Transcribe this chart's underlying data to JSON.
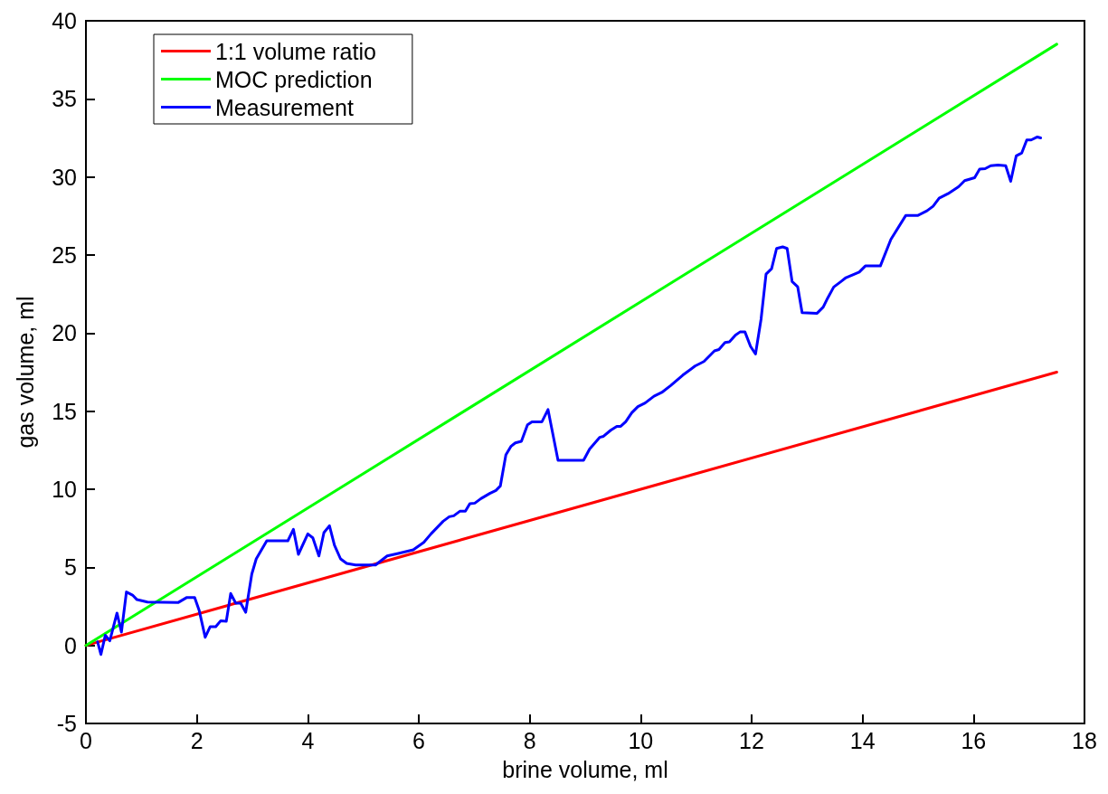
{
  "chart_data": {
    "type": "line",
    "xlabel": "brine volume, ml",
    "ylabel": "gas volume, ml",
    "xlim": [
      0,
      18
    ],
    "xticks": [
      0,
      2,
      4,
      6,
      8,
      10,
      12,
      14,
      16,
      18
    ],
    "ylim": [
      -5,
      40
    ],
    "yticks": [
      -5,
      0,
      5,
      10,
      15,
      20,
      25,
      30,
      35,
      40
    ],
    "grid": false,
    "legend": "top left",
    "marker": "none",
    "line_style": "solid",
    "series": [
      {
        "name": "1:1 volume ratio",
        "color": "#ff0000",
        "x": [
          0,
          17.5
        ],
        "values": [
          0,
          17.5
        ]
      },
      {
        "name": "MOC prediction",
        "color": "#00ff00",
        "x": [
          0,
          17.5
        ],
        "values": [
          0,
          38.5
        ]
      },
      {
        "name": "Measurement",
        "color": "#0000ff",
        "x": [
          0.21,
          0.27,
          0.35,
          0.43,
          0.56,
          0.64,
          0.73,
          0.84,
          0.92,
          1.11,
          1.66,
          1.82,
          1.96,
          2.04,
          2.15,
          2.24,
          2.34,
          2.43,
          2.53,
          2.61,
          2.7,
          2.79,
          2.88,
          2.99,
          3.07,
          3.26,
          3.64,
          3.74,
          3.83,
          4.0,
          4.09,
          4.2,
          4.29,
          4.39,
          4.48,
          4.59,
          4.7,
          4.86,
          5.03,
          5.22,
          5.43,
          5.63,
          5.9,
          6.09,
          6.22,
          6.44,
          6.55,
          6.63,
          6.74,
          6.84,
          6.92,
          7.01,
          7.12,
          7.28,
          7.39,
          7.47,
          7.57,
          7.66,
          7.74,
          7.85,
          7.96,
          8.04,
          8.22,
          8.33,
          8.4,
          8.51,
          8.97,
          9.08,
          9.26,
          9.33,
          9.46,
          9.57,
          9.64,
          9.73,
          9.84,
          9.95,
          10.08,
          10.24,
          10.38,
          10.54,
          10.76,
          10.98,
          11.14,
          11.33,
          11.41,
          11.52,
          11.6,
          11.71,
          11.79,
          11.88,
          11.98,
          12.07,
          12.17,
          12.26,
          12.36,
          12.45,
          12.56,
          12.64,
          12.73,
          12.83,
          12.91,
          13.18,
          13.29,
          13.37,
          13.48,
          13.61,
          13.7,
          13.94,
          14.05,
          14.32,
          14.51,
          14.78,
          15.0,
          15.16,
          15.27,
          15.38,
          15.54,
          15.73,
          15.84,
          16.02,
          16.11,
          16.21,
          16.31,
          16.44,
          16.58,
          16.67,
          16.77,
          16.87,
          16.96,
          17.04,
          17.15,
          17.21
        ],
        "values": [
          0.23,
          -0.58,
          0.65,
          0.29,
          2.07,
          0.85,
          3.42,
          3.22,
          2.93,
          2.78,
          2.74,
          3.07,
          3.07,
          2.26,
          0.52,
          1.2,
          1.2,
          1.58,
          1.55,
          3.32,
          2.7,
          2.7,
          2.12,
          4.57,
          5.54,
          6.7,
          6.7,
          7.43,
          5.83,
          7.14,
          6.89,
          5.73,
          7.22,
          7.66,
          6.41,
          5.54,
          5.25,
          5.15,
          5.15,
          5.15,
          5.73,
          5.89,
          6.12,
          6.6,
          7.14,
          7.95,
          8.24,
          8.3,
          8.59,
          8.59,
          9.07,
          9.11,
          9.4,
          9.73,
          9.92,
          10.21,
          12.2,
          12.74,
          12.97,
          13.07,
          14.13,
          14.32,
          14.32,
          15.1,
          13.84,
          11.85,
          11.85,
          12.58,
          13.32,
          13.39,
          13.78,
          14.03,
          14.03,
          14.32,
          14.9,
          15.29,
          15.52,
          15.96,
          16.2,
          16.64,
          17.31,
          17.89,
          18.18,
          18.86,
          18.95,
          19.4,
          19.44,
          19.88,
          20.07,
          20.07,
          19.15,
          18.66,
          20.89,
          23.78,
          24.12,
          25.42,
          25.52,
          25.42,
          23.3,
          22.97,
          21.31,
          21.27,
          21.66,
          22.24,
          22.95,
          23.3,
          23.55,
          23.91,
          24.3,
          24.3,
          26.0,
          27.54,
          27.54,
          27.83,
          28.12,
          28.64,
          28.93,
          29.37,
          29.76,
          29.95,
          30.5,
          30.53,
          30.72,
          30.76,
          30.72,
          29.72,
          31.35,
          31.54,
          32.37,
          32.37,
          32.56,
          32.5
        ]
      }
    ]
  }
}
